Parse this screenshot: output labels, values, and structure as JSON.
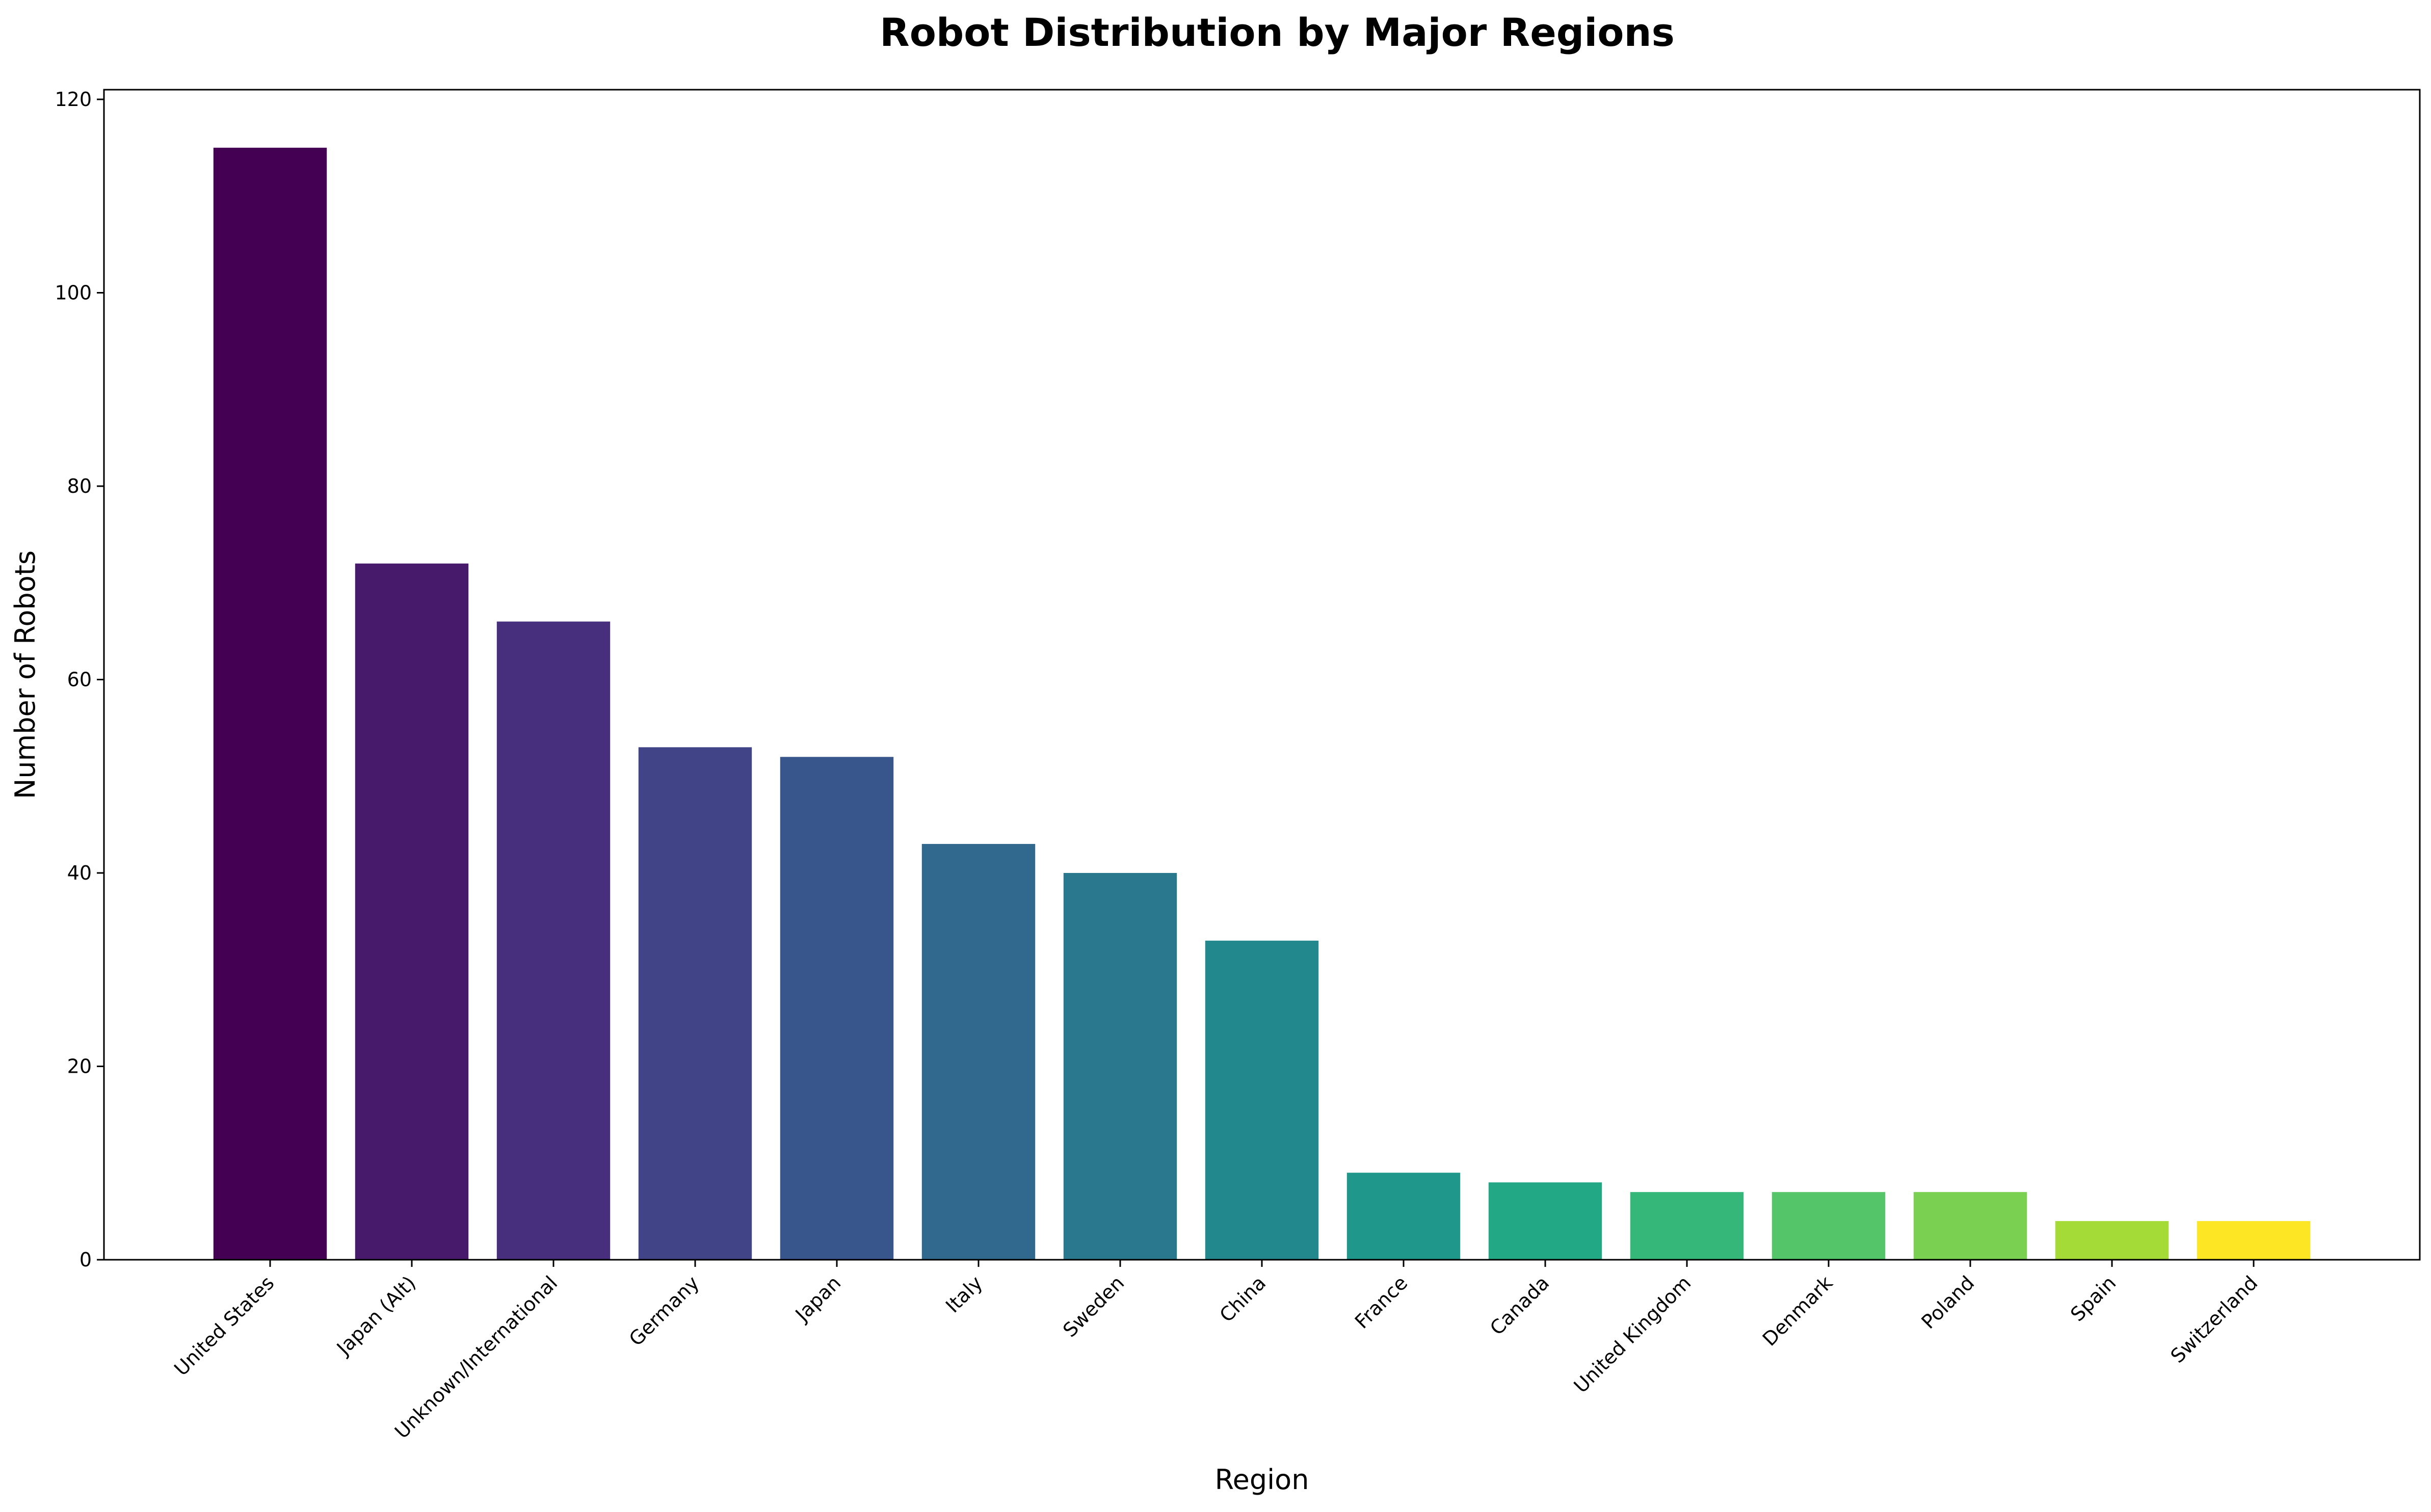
{
  "chart_data": {
    "type": "bar",
    "title": "Robot Distribution by Major Regions",
    "xlabel": "Region",
    "ylabel": "Number of Robots",
    "ylim": [
      0,
      121
    ],
    "yticks": [
      0,
      20,
      40,
      60,
      80,
      100,
      120
    ],
    "grid": false,
    "legend": "none",
    "colormap": "viridis",
    "categories": [
      "United States",
      "Japan (Alt)",
      "Unknown/International",
      "Germany",
      "Japan",
      "Italy",
      "Sweden",
      "China",
      "France",
      "Canada",
      "United Kingdom",
      "Denmark",
      "Poland",
      "Spain",
      "Switzerland"
    ],
    "values": [
      115,
      72,
      66,
      53,
      52,
      43,
      40,
      33,
      9,
      8,
      7,
      7,
      7,
      4,
      4
    ],
    "colors": [
      "#440154",
      "#481a6c",
      "#472f7d",
      "#414487",
      "#39568c",
      "#31688e",
      "#2a788e",
      "#23888e",
      "#1f988b",
      "#22a884",
      "#35b779",
      "#54c568",
      "#7ad151",
      "#a5db36",
      "#fde725"
    ]
  }
}
